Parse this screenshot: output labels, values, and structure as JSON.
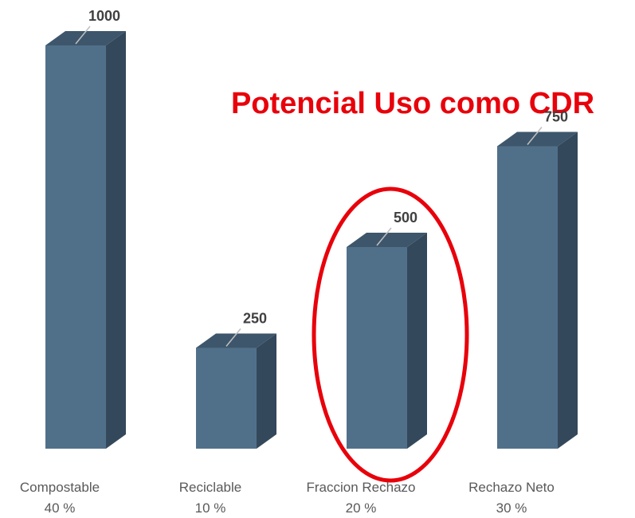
{
  "chart_data": {
    "type": "bar3d",
    "annotation": "Potencial Uso como CDR",
    "categories": [
      "Compostable",
      "Reciclable",
      "Fraccion Rechazo",
      "Rechazo Neto"
    ],
    "share_labels": [
      "40 %",
      "10 %",
      "20 %",
      "30 %"
    ],
    "values": [
      1000,
      250,
      500,
      750
    ],
    "colors": {
      "front": "#50708a",
      "top": "#3e566b",
      "side": "#34485b"
    },
    "ylim": [
      0,
      1000
    ]
  }
}
